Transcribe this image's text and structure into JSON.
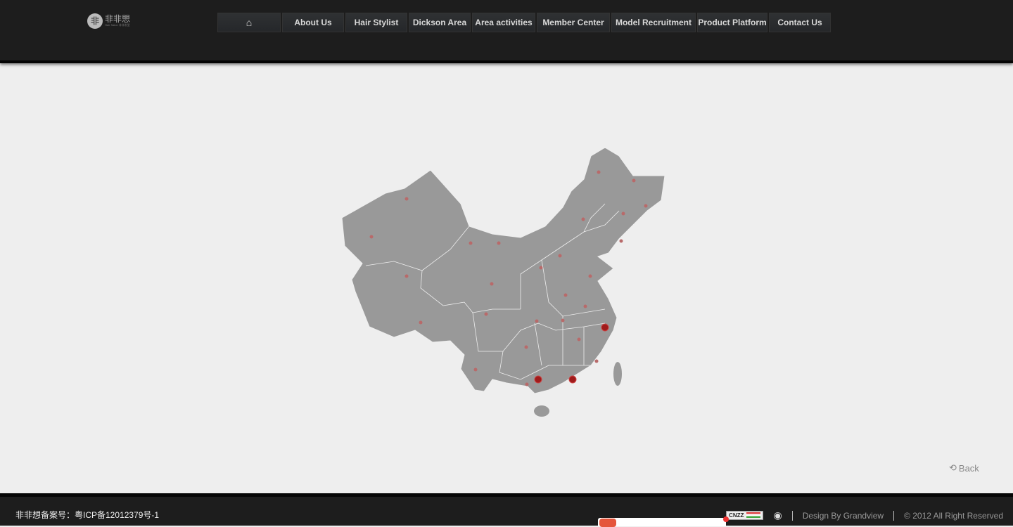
{
  "header": {
    "logo_text": "非非愳",
    "logo_sub": "Hair Salon 非非发型",
    "nav": [
      {
        "label": "",
        "icon": "home-icon"
      },
      {
        "label": "About Us"
      },
      {
        "label": "Hair Stylist"
      },
      {
        "label": "Dickson Area"
      },
      {
        "label": "Area activities"
      },
      {
        "label": "Member Center"
      },
      {
        "label": "Model Recruitment"
      },
      {
        "label": "Product Platform"
      },
      {
        "label": "Contact Us"
      }
    ]
  },
  "map": {
    "fill": "#999999",
    "highlight_color": "#a01b1b",
    "dot_color": "#b86a6a"
  },
  "back_label": "Back",
  "footer": {
    "icp": "非非想备案号：粤ICP备12012379号-1",
    "cnzz": "CNZZ",
    "design": "Design By Grandview",
    "copyright": "© 2012 All Right Reserved"
  }
}
